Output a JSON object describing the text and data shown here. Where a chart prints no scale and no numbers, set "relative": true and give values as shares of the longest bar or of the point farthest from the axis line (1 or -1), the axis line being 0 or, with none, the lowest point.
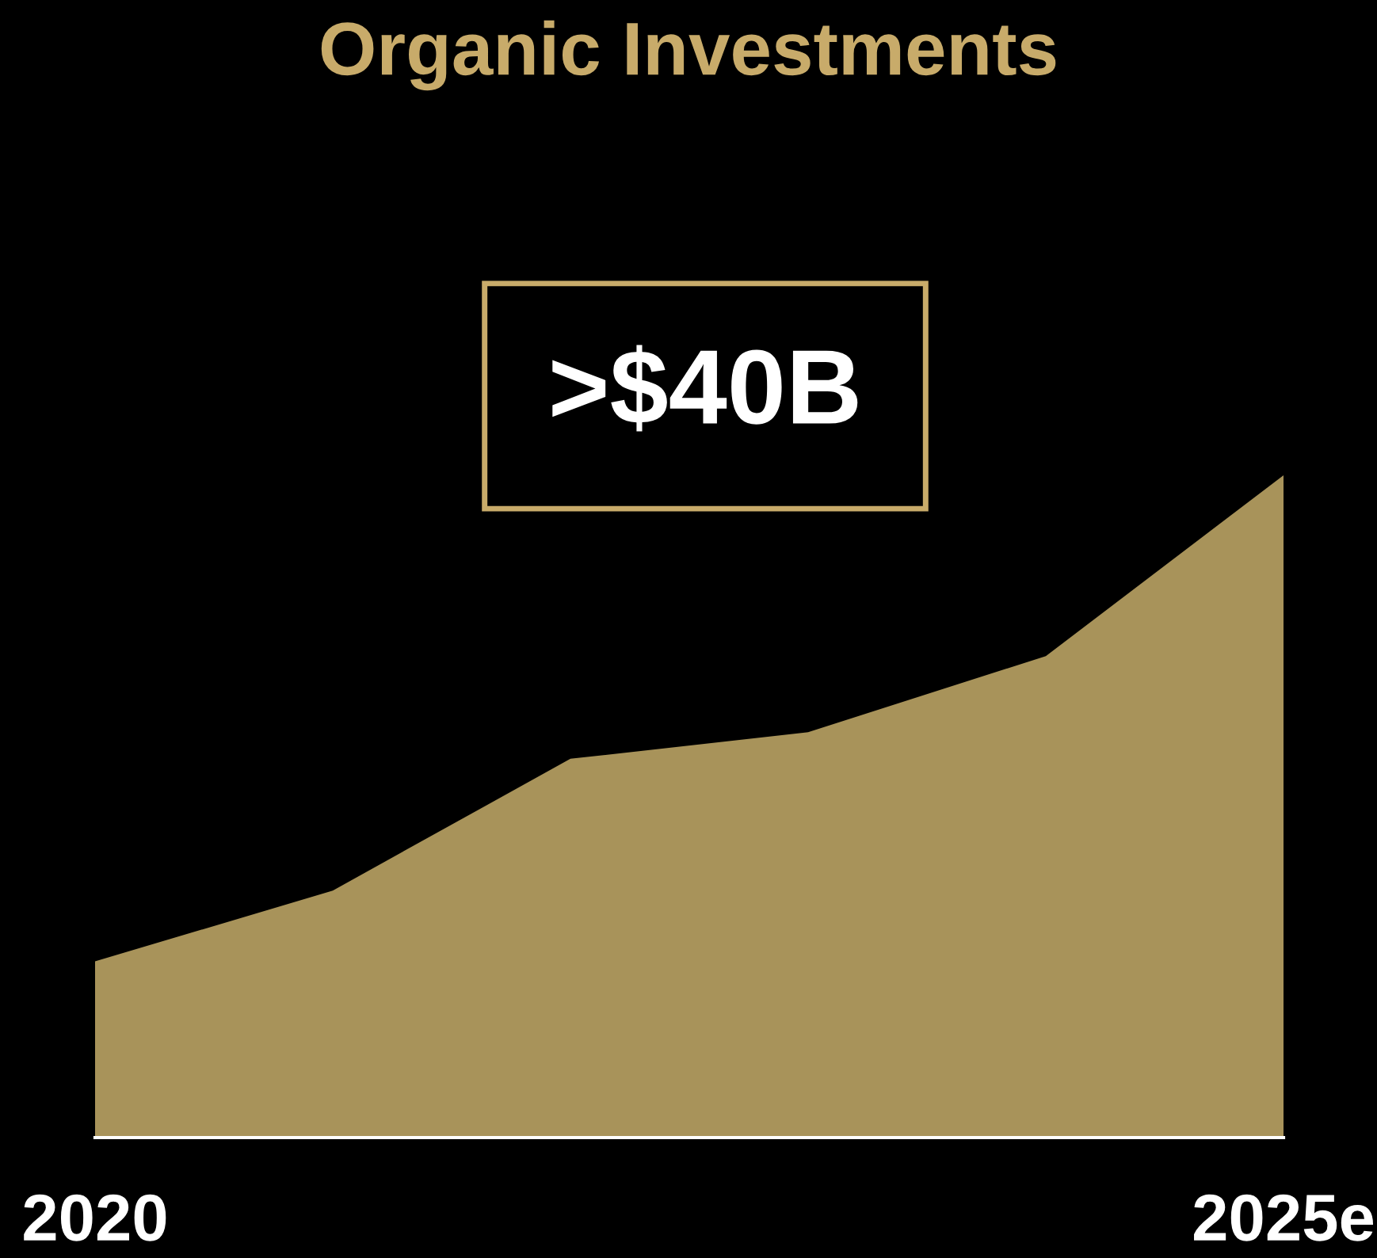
{
  "chart_data": {
    "type": "area",
    "title": "Organic Investments",
    "categories": [
      "2020",
      null,
      null,
      null,
      null,
      "2025e"
    ],
    "values": [
      0.266,
      0.373,
      0.572,
      0.612,
      0.727,
      1
    ],
    "color": "#a8935a",
    "relative": true,
    "annotations": [
      ">$40B"
    ],
    "grid": false,
    "legend": false
  }
}
